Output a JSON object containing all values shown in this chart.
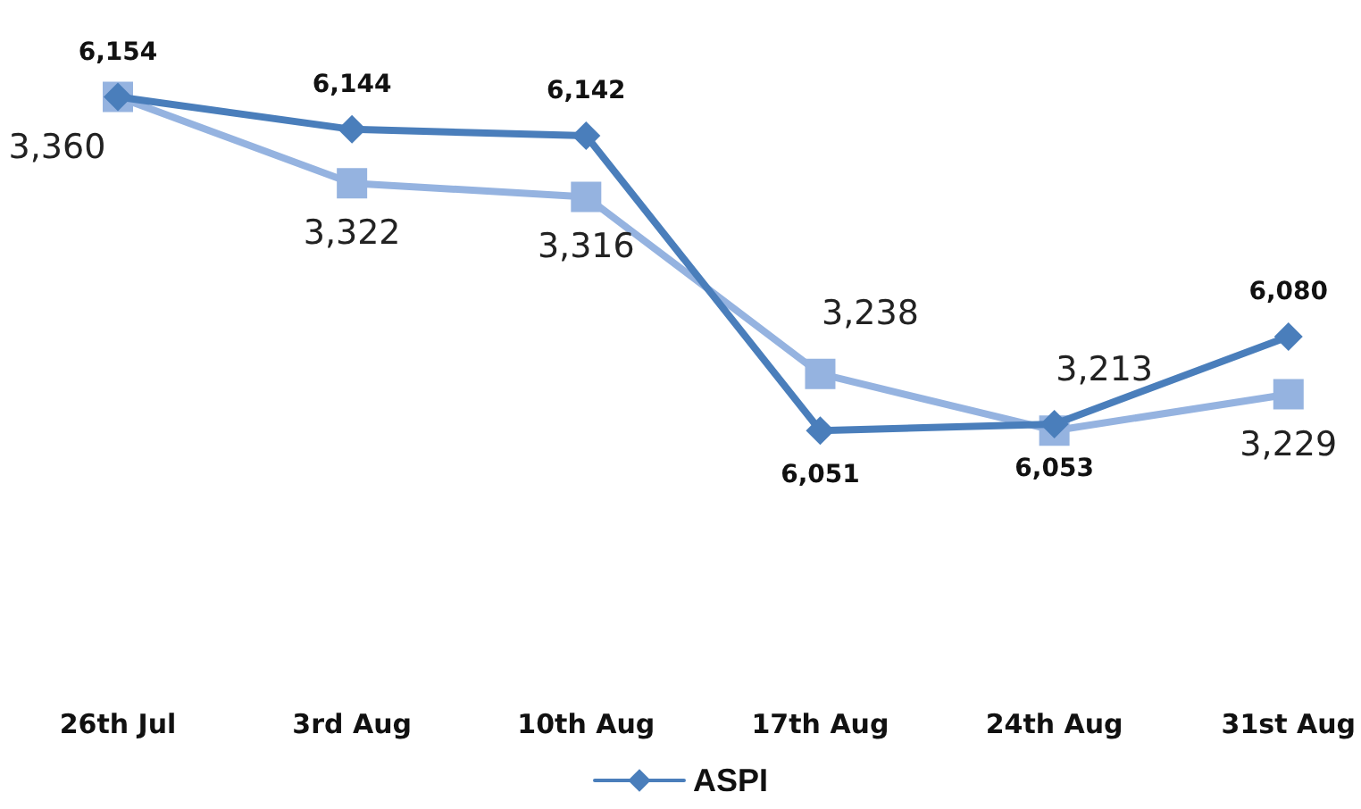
{
  "chart_data": {
    "type": "line",
    "categories": [
      "26th Jul",
      "3rd Aug",
      "10th Aug",
      "17th Aug",
      "24th Aug",
      "31st Aug"
    ],
    "series": [
      {
        "name": "ASPI",
        "color": "#4a7ebb",
        "marker": "diamond",
        "values": [
          6154,
          6144,
          6142,
          6051,
          6053,
          6080
        ],
        "value_labels": [
          "6,154",
          "6,144",
          "6,142",
          "6,051",
          "6,053",
          "6,080"
        ]
      },
      {
        "color": "#95b3e0",
        "marker": "square",
        "axis": "y2",
        "values": [
          3360,
          3322,
          3316,
          3238,
          3213,
          3229
        ],
        "value_labels": [
          "3,360",
          "3,322",
          "3,316",
          "3,238",
          "3,213",
          "3,229"
        ]
      }
    ],
    "tick_labels": "x",
    "grid": false,
    "legend": "bottom"
  }
}
